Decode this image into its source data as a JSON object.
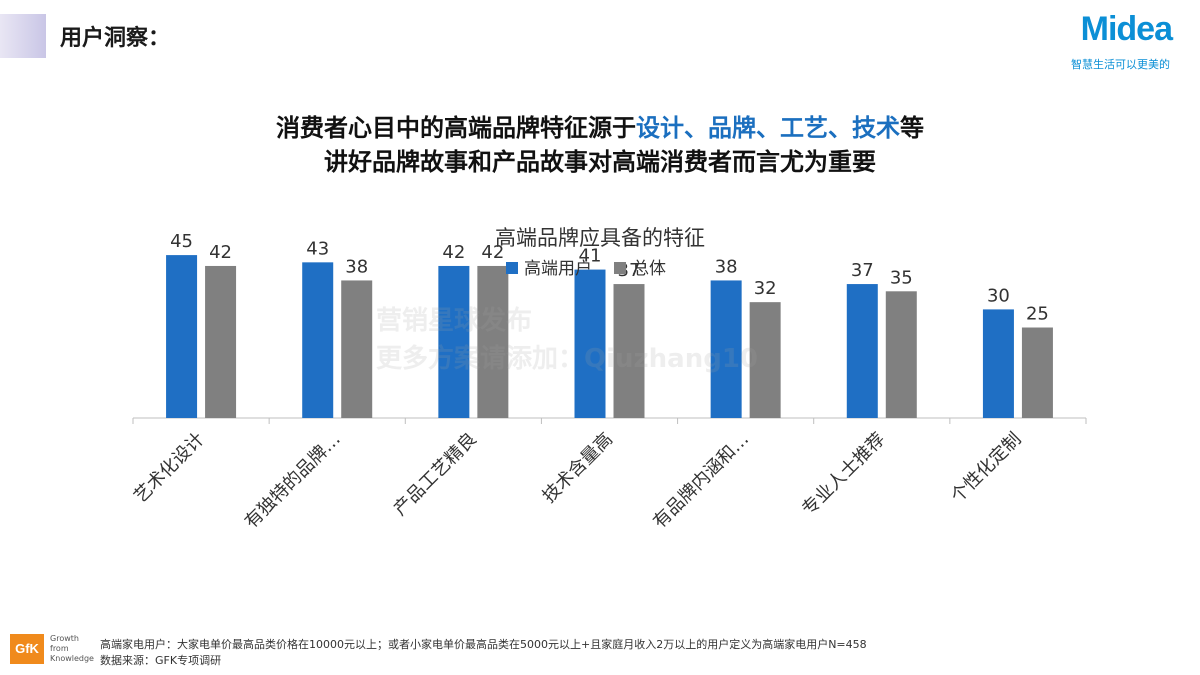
{
  "header": {
    "section_title": "用户洞察：",
    "logo_text": "Midea",
    "logo_slogan": "智慧生活可以更美的"
  },
  "headline": {
    "line1_before": "消费者心目中的高端品牌特征源于",
    "line1_highlight": "设计、品牌、工艺、技术",
    "line1_after": "等",
    "line2": "讲好品牌故事和产品故事对高端消费者而言尤为重要"
  },
  "colors": {
    "series_high_end": "#1f6fc4",
    "series_overall": "#808080",
    "highlight": "#1b6fbf"
  },
  "chart_data": {
    "type": "bar",
    "title": "高端品牌应具备的特征",
    "categories": [
      "艺术化设计",
      "有独特的品牌…",
      "产品工艺精良",
      "技术含量高",
      "有品牌内涵和…",
      "专业人士推荐",
      "个性化定制"
    ],
    "series": [
      {
        "name": "高端用户",
        "values": [
          45,
          43,
          42,
          41,
          38,
          37,
          30
        ]
      },
      {
        "name": "总体",
        "values": [
          42,
          38,
          42,
          37,
          32,
          35,
          25
        ]
      }
    ],
    "ylim": [
      0,
      50
    ],
    "grid": false,
    "legend": "top-center",
    "data_labels": true
  },
  "watermark": {
    "line1": "营销星球发布",
    "line2": "更多方案请添加：Qiuzhang10"
  },
  "footer": {
    "gfk_logo": "GfK",
    "gfk_tagline": "Growth from Knowledge",
    "note_line1": "高端家电用户：大家电单价最高品类价格在10000元以上；或者小家电单价最高品类在5000元以上+且家庭月收入2万以上的用户定义为高端家电用户N=458",
    "note_line2": "数据来源：GFK专项调研"
  }
}
